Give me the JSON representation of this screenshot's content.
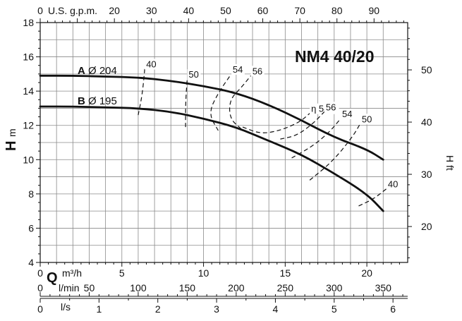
{
  "chart_data": {
    "type": "line",
    "title": "NM4 40/20",
    "x_primary": {
      "label": "Q",
      "unit": "m³/h",
      "range": [
        0,
        22.5
      ],
      "ticks": [
        0,
        5,
        10,
        15,
        20
      ]
    },
    "x_secondary": [
      {
        "label": "l/min",
        "range": [
          0,
          375
        ],
        "ticks": [
          0,
          50,
          100,
          150,
          200,
          250,
          300,
          350
        ]
      },
      {
        "label": "l/s",
        "range": [
          0,
          6.25
        ],
        "ticks": [
          0,
          1,
          2,
          3,
          4,
          5,
          6
        ]
      },
      {
        "label": "U.S. g.p.m.",
        "range": [
          0,
          99.07
        ],
        "ticks": [
          0,
          20,
          30,
          40,
          50,
          60,
          70,
          80,
          90
        ]
      }
    ],
    "y_primary": {
      "label": "H",
      "unit": "m",
      "range": [
        4,
        18
      ],
      "ticks": [
        4,
        6,
        8,
        10,
        12,
        14,
        16,
        18
      ]
    },
    "y_secondary": {
      "label": "H ft",
      "range": [
        13.12,
        59.06
      ],
      "ticks": [
        20,
        30,
        40,
        50
      ]
    },
    "grid": true,
    "series": [
      {
        "name": "A",
        "diameter": "Ø 204",
        "x": [
          0,
          2,
          4,
          6,
          8,
          10,
          12,
          14,
          16,
          18,
          20,
          21
        ],
        "y": [
          14.9,
          14.9,
          14.85,
          14.8,
          14.6,
          14.3,
          13.9,
          13.2,
          12.3,
          11.3,
          10.6,
          10.0
        ]
      },
      {
        "name": "B",
        "diameter": "Ø 195",
        "x": [
          0,
          2,
          4,
          6,
          8,
          10,
          12,
          14,
          16,
          18,
          20,
          21
        ],
        "y": [
          13.1,
          13.1,
          13.05,
          13.0,
          12.8,
          12.4,
          11.9,
          11.1,
          10.3,
          9.2,
          8.0,
          7.0
        ]
      }
    ],
    "efficiency_curves": [
      {
        "label": "40",
        "x": [
          6.0,
          6.25,
          6.4
        ],
        "y": [
          12.6,
          13.8,
          15.3
        ]
      },
      {
        "label": "50",
        "x": [
          8.9,
          8.9,
          9.0
        ],
        "y": [
          11.9,
          13.3,
          14.7
        ]
      },
      {
        "label": "54",
        "x": [
          10.9,
          10.3,
          10.9,
          11.7
        ],
        "y": [
          11.7,
          12.7,
          13.9,
          15.0
        ]
      },
      {
        "label": "56",
        "x": [
          12.3,
          11.6,
          11.6,
          12.3,
          12.9
        ],
        "y": [
          11.8,
          12.4,
          13.5,
          14.2,
          14.9
        ]
      },
      {
        "label": "η 58%",
        "x": [
          12.4,
          13.5,
          14.7,
          15.9,
          16.5
        ],
        "y": [
          11.9,
          11.5,
          11.7,
          12.2,
          12.7
        ]
      },
      {
        "label": "56",
        "x": [
          14.7,
          15.7,
          16.7,
          17.4
        ],
        "y": [
          11.2,
          11.4,
          12.1,
          12.8
        ]
      },
      {
        "label": "54",
        "x": [
          15.4,
          16.7,
          17.7,
          18.4
        ],
        "y": [
          10.1,
          10.8,
          11.6,
          12.4
        ]
      },
      {
        "label": "50",
        "x": [
          16.5,
          17.9,
          19.1,
          19.6
        ],
        "y": [
          8.8,
          9.9,
          11.3,
          12.1
        ]
      },
      {
        "label": "40",
        "x": [
          19.5,
          20.4,
          21.2
        ],
        "y": [
          7.3,
          7.7,
          8.3
        ]
      }
    ]
  }
}
